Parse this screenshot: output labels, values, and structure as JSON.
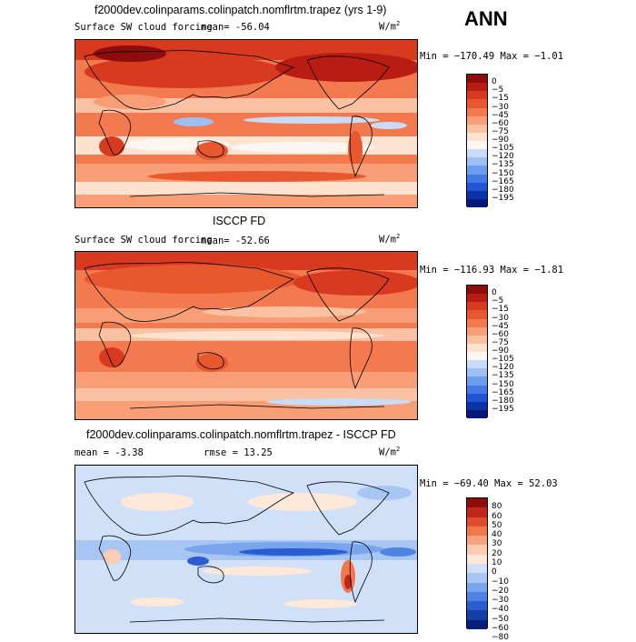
{
  "season": "ANN",
  "colors": {
    "forcing": [
      "#8e0c0c",
      "#b91c12",
      "#d83a20",
      "#e8582e",
      "#f37a4e",
      "#f79e76",
      "#fac1a2",
      "#fde2cf",
      "#fbf6ef",
      "#c9dcf7",
      "#9dbff2",
      "#6e9cec",
      "#4279e2",
      "#1f55d3",
      "#0b33a8",
      "#06197a"
    ],
    "diff": [
      "#8e0c0c",
      "#c1261a",
      "#e04d2d",
      "#f3774d",
      "#f9a27f",
      "#fccbb1",
      "#fde8da",
      "#cfe0f7",
      "#a7c6f3",
      "#7aa5ec",
      "#4f82e2",
      "#2a5dcf",
      "#123ea7",
      "#081f79"
    ]
  },
  "panels": [
    {
      "title": "f2000dev.colinparams.colinpatch.nomflrtm.trapez (yrs 1-9)",
      "variable": "Surface SW cloud forcing",
      "stat": "mean=  -56.04",
      "units": "W/m",
      "units_exp": "2",
      "minmax": "Min = −170.49 Max =  −1.01",
      "levels": [
        "0",
        "−5",
        "−15",
        "−30",
        "−45",
        "−60",
        "−75",
        "−90",
        "−105",
        "−120",
        "−135",
        "−150",
        "−165",
        "−180",
        "−195"
      ]
    },
    {
      "title": "ISCCP FD",
      "variable": "Surface SW cloud forcing",
      "stat": "mean=  -52.66",
      "units": "W/m",
      "units_exp": "2",
      "minmax": "Min = −116.93 Max =  −1.81",
      "levels": [
        "0",
        "−5",
        "−15",
        "−30",
        "−45",
        "−60",
        "−75",
        "−90",
        "−105",
        "−120",
        "−135",
        "−150",
        "−165",
        "−180",
        "−195"
      ]
    },
    {
      "title": "f2000dev.colinparams.colinpatch.nomflrtm.trapez - ISCCP FD",
      "stat_mean": "mean =   -3.38",
      "stat_rmse": "rmse =   13.25",
      "units": "W/m",
      "units_exp": "2",
      "minmax": "Min = −69.40 Max =  52.03",
      "levels": [
        "80",
        "60",
        "50",
        "40",
        "30",
        "20",
        "10",
        "0",
        "−10",
        "−20",
        "−30",
        "−40",
        "−50",
        "−60",
        "−80"
      ]
    }
  ]
}
